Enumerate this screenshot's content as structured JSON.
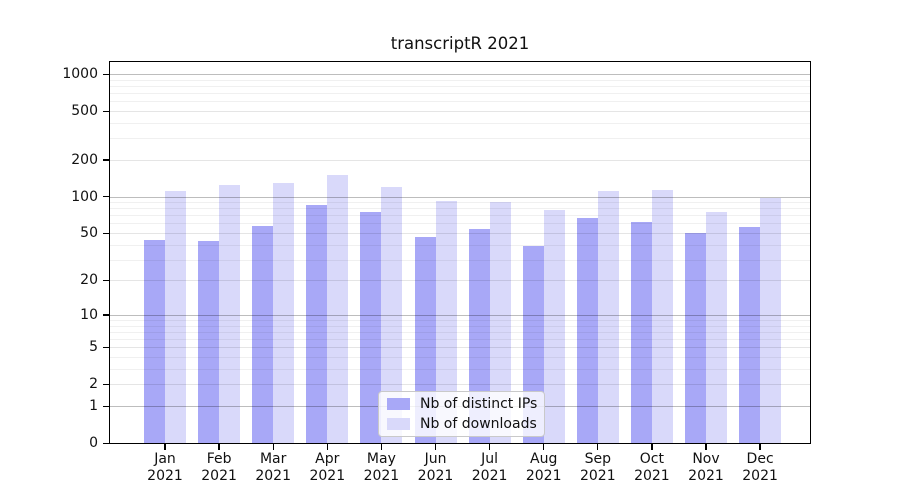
{
  "title": "transcriptR 2021",
  "chart_data": {
    "type": "bar",
    "title": "transcriptR 2021",
    "subtitle": "",
    "xlabel": "",
    "ylabel": "",
    "scale": "log-like (log10 of value+1), zero at baseline",
    "categories": [
      "Jan",
      "Feb",
      "Mar",
      "Apr",
      "May",
      "Jun",
      "Jul",
      "Aug",
      "Sep",
      "Oct",
      "Nov",
      "Dec"
    ],
    "year": "2021",
    "series": [
      {
        "name": "Nb of distinct IPs",
        "color": "#a8a8f7",
        "values": [
          44,
          43,
          57,
          85,
          75,
          46,
          54,
          39,
          66,
          62,
          50,
          56
        ]
      },
      {
        "name": "Nb of downloads",
        "color": "#d9d9fa",
        "values": [
          112,
          124,
          129,
          151,
          119,
          92,
          90,
          78,
          112,
          113,
          75,
          97
        ]
      }
    ],
    "y_ticks": [
      0,
      1,
      2,
      5,
      10,
      20,
      50,
      100,
      200,
      500,
      1000
    ],
    "ylim": [
      0,
      1260
    ],
    "grid": "horizontal, minor log gridlines light, powers of ten darker, drawn over bars",
    "legend_position": "lower center (inside plot, overlapping Jun-Aug bars)",
    "colors": {
      "series_dark": "#a8a8f7",
      "series_light": "#d9d9fa",
      "grid_major": "rgba(0,0,0,0.26)",
      "grid_minor": "rgba(0,0,0,0.06)",
      "spine": "#000000",
      "background": "#ffffff",
      "text": "#111111"
    }
  }
}
